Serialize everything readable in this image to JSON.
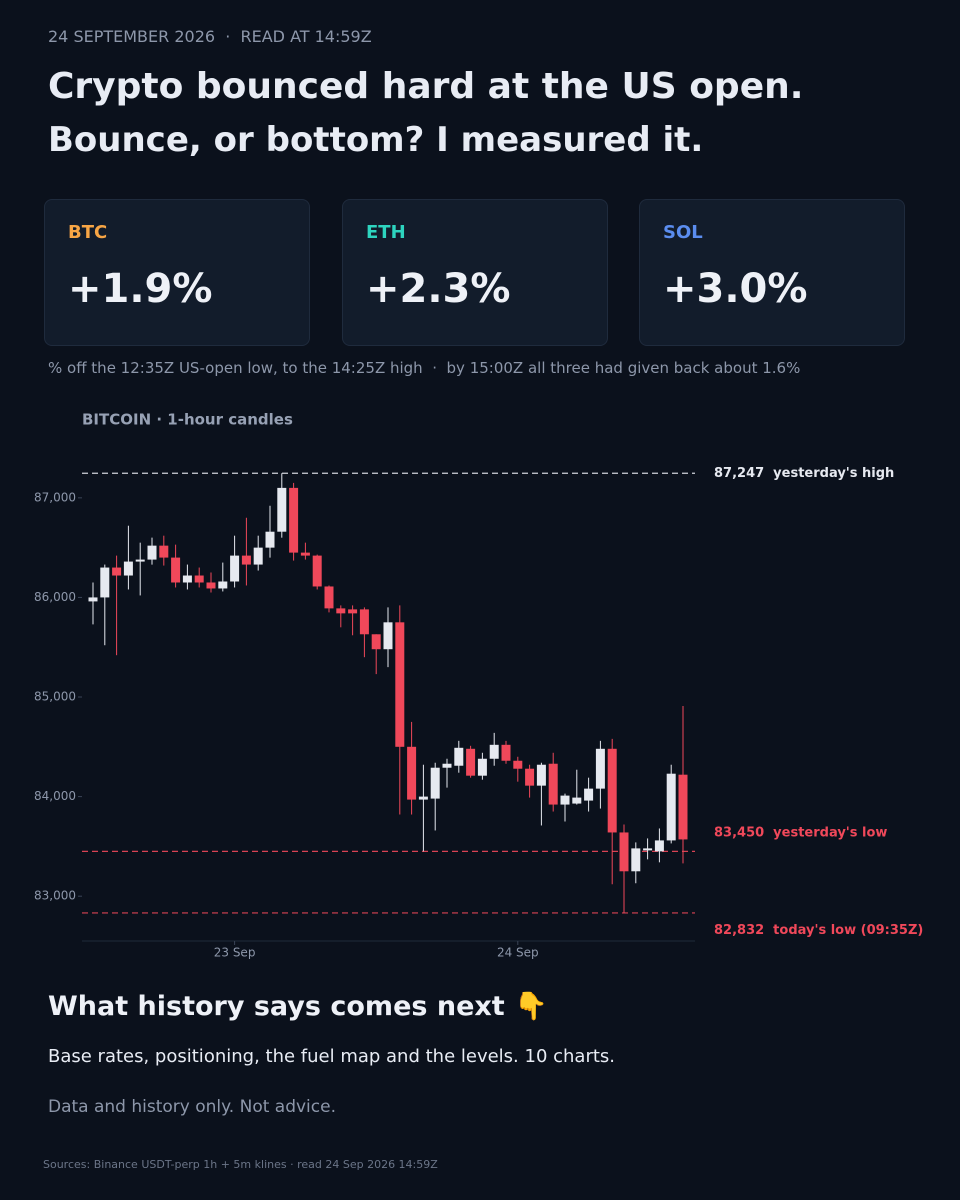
{
  "header": {
    "dateline": "24 SEPTEMBER 2026  ·  READ AT 14:59Z",
    "title_line1": "Crypto bounced hard at the US open.",
    "title_line2": "Bounce, or bottom? I measured it."
  },
  "cards": [
    {
      "ticker": "BTC",
      "change": "+1.9%",
      "color": "#f7a545"
    },
    {
      "ticker": "ETH",
      "change": "+2.3%",
      "color": "#2dd4bf"
    },
    {
      "ticker": "SOL",
      "change": "+3.0%",
      "color": "#5b8def"
    }
  ],
  "note": "% off the 12:35Z US-open low, to the 14:25Z high  ·  by 15:00Z all three had given back about 1.6%",
  "chart_data": {
    "type": "candlestick",
    "title": "BITCOIN · 1-hour candles",
    "categories": [
      null,
      null,
      null,
      null,
      null,
      null,
      null,
      null,
      null,
      null,
      null,
      null,
      "23 Sep",
      null,
      null,
      null,
      null,
      null,
      null,
      null,
      null,
      null,
      null,
      null,
      null,
      null,
      null,
      null,
      null,
      null,
      null,
      null,
      null,
      null,
      null,
      null,
      "24 Sep",
      null,
      null,
      null,
      null,
      null,
      null,
      null,
      null,
      null,
      null,
      null,
      null,
      null,
      null
    ],
    "series": [
      {
        "name": "BTC",
        "up_color": "#e6e9f0",
        "down_color": "#f0485a",
        "open": [
          85960,
          86000,
          86300,
          86220,
          86360,
          86380,
          86520,
          86400,
          86150,
          86220,
          86150,
          86090,
          86160,
          86420,
          86330,
          86500,
          86660,
          87100,
          86450,
          86420,
          86110,
          85890,
          85880,
          85880,
          85630,
          85480,
          85750,
          84500,
          83970,
          83980,
          84290,
          84310,
          84480,
          84210,
          84380,
          84520,
          84360,
          84280,
          84110,
          84330,
          83920,
          83930,
          83960,
          84080,
          84480,
          83640,
          83250,
          83460,
          83450,
          83560,
          84220
        ],
        "high": [
          86150,
          86330,
          86420,
          86720,
          86550,
          86600,
          86620,
          86530,
          86330,
          86300,
          86250,
          86350,
          86620,
          86800,
          86620,
          86920,
          87247,
          87150,
          86550,
          86430,
          86120,
          85920,
          85920,
          85900,
          85630,
          85900,
          85920,
          84750,
          84320,
          84340,
          84380,
          84560,
          84510,
          84440,
          84640,
          84560,
          84400,
          84320,
          84340,
          84440,
          84030,
          84270,
          84190,
          84560,
          84580,
          83720,
          83540,
          83580,
          83680,
          84320,
          84910
        ],
        "low": [
          85730,
          85520,
          85420,
          86080,
          86020,
          86330,
          86320,
          86100,
          86080,
          86100,
          86050,
          86060,
          86100,
          86120,
          86270,
          86400,
          86600,
          86370,
          86380,
          86080,
          85850,
          85700,
          85620,
          85400,
          85230,
          85300,
          83820,
          83820,
          83450,
          83660,
          84090,
          84240,
          84190,
          84170,
          84310,
          84330,
          84150,
          83990,
          83710,
          83850,
          83750,
          83920,
          83850,
          83880,
          83120,
          82832,
          83130,
          83370,
          83340,
          83530,
          83330
        ],
        "close": [
          86000,
          86300,
          86220,
          86360,
          86380,
          86520,
          86400,
          86150,
          86220,
          86150,
          86090,
          86160,
          86420,
          86330,
          86500,
          86660,
          87100,
          86450,
          86420,
          86110,
          85890,
          85840,
          85840,
          85630,
          85480,
          85750,
          84500,
          83970,
          84000,
          84290,
          84330,
          84490,
          84210,
          84380,
          84520,
          84360,
          84280,
          84110,
          84320,
          83920,
          84010,
          83990,
          84080,
          84480,
          83640,
          83250,
          83480,
          83480,
          83560,
          84230,
          83570
        ]
      }
    ],
    "ylim": [
      82550,
      87380
    ],
    "yticks": [
      {
        "value": 83000,
        "label": "83,000"
      },
      {
        "value": 84000,
        "label": "84,000"
      },
      {
        "value": 85000,
        "label": "85,000"
      },
      {
        "value": 86000,
        "label": "86,000"
      },
      {
        "value": 87000,
        "label": "87,000"
      }
    ],
    "reference_lines": [
      {
        "value": 87247,
        "label": "87,247",
        "text": "yesterday's high",
        "color": "#e6e9f0"
      },
      {
        "value": 83450,
        "label": "83,450",
        "text": "yesterday's low",
        "color": "#f0485a"
      },
      {
        "value": 82832,
        "label": "82,832",
        "text": "today's low (09:35Z)",
        "color": "#f0485a"
      }
    ]
  },
  "footer": {
    "heading": "What history says comes next 👇",
    "body": "Base rates, positioning, the fuel map and the levels. 10 charts.",
    "disclaimer": "Data and history only. Not advice.",
    "sources": "Sources: Binance USDT-perp 1h + 5m klines · read 24 Sep 2026 14:59Z"
  }
}
